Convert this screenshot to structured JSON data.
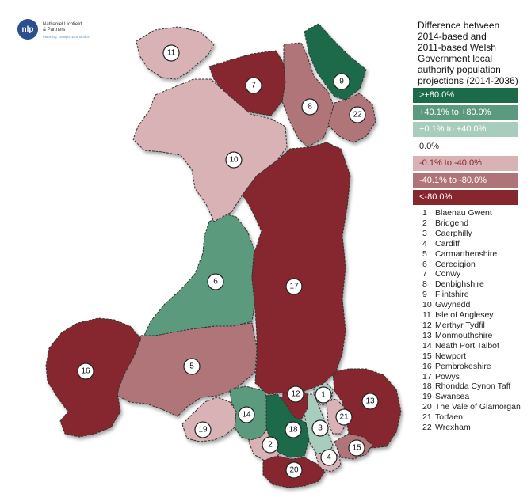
{
  "logo": {
    "mark": "nlp",
    "line1": "Nathaniel Lichfield",
    "line2": "& Partners",
    "tagline": "Planning. Design. Economics."
  },
  "legend": {
    "title_lines": [
      "Difference between",
      "2014-based and",
      "2011-based Welsh",
      "Government local",
      "authority population",
      "projections (2014-2036)"
    ],
    "categories": [
      {
        "label": ">+80.0%",
        "color": "#1b6b4a"
      },
      {
        "label": "+40.1% to +80.0%",
        "color": "#5c9a7e"
      },
      {
        "label": "+0.1% to +40.0%",
        "color": "#a9cdbd"
      },
      {
        "label": "0.0%",
        "color": "#ffffff"
      },
      {
        "label": "-0.1% to -40.0%",
        "color": "#d9b2b5"
      },
      {
        "label": "-40.1% to -80.0%",
        "color": "#b07478"
      },
      {
        "label": "<-80.0%",
        "color": "#86272e"
      }
    ]
  },
  "areas": [
    {
      "num": "1",
      "name": "Blaenau Gwent",
      "category": 2
    },
    {
      "num": "2",
      "name": "Bridgend",
      "category": 4
    },
    {
      "num": "3",
      "name": "Caerphilly",
      "category": 2
    },
    {
      "num": "4",
      "name": "Cardiff",
      "category": 4
    },
    {
      "num": "5",
      "name": "Carmarthenshire",
      "category": 5
    },
    {
      "num": "6",
      "name": "Ceredigion",
      "category": 1
    },
    {
      "num": "7",
      "name": "Conwy",
      "category": 6
    },
    {
      "num": "8",
      "name": "Denbighshire",
      "category": 5
    },
    {
      "num": "9",
      "name": "Flintshire",
      "category": 0
    },
    {
      "num": "10",
      "name": "Gwynedd",
      "category": 4
    },
    {
      "num": "11",
      "name": "Isle of Anglesey",
      "category": 4
    },
    {
      "num": "12",
      "name": "Merthyr Tydfil",
      "category": 6
    },
    {
      "num": "13",
      "name": "Monmouthshire",
      "category": 6
    },
    {
      "num": "14",
      "name": "Neath Port Talbot",
      "category": 1
    },
    {
      "num": "15",
      "name": "Newport",
      "category": 5
    },
    {
      "num": "16",
      "name": "Pembrokeshire",
      "category": 6
    },
    {
      "num": "17",
      "name": "Powys",
      "category": 6
    },
    {
      "num": "18",
      "name": "Rhondda Cynon Taff",
      "category": 0
    },
    {
      "num": "19",
      "name": "Swansea",
      "category": 4
    },
    {
      "num": "20",
      "name": "The Vale of Glamorgan",
      "category": 6
    },
    {
      "num": "21",
      "name": "Torfaen",
      "category": 4
    },
    {
      "num": "22",
      "name": "Wrexham",
      "category": 5
    }
  ]
}
